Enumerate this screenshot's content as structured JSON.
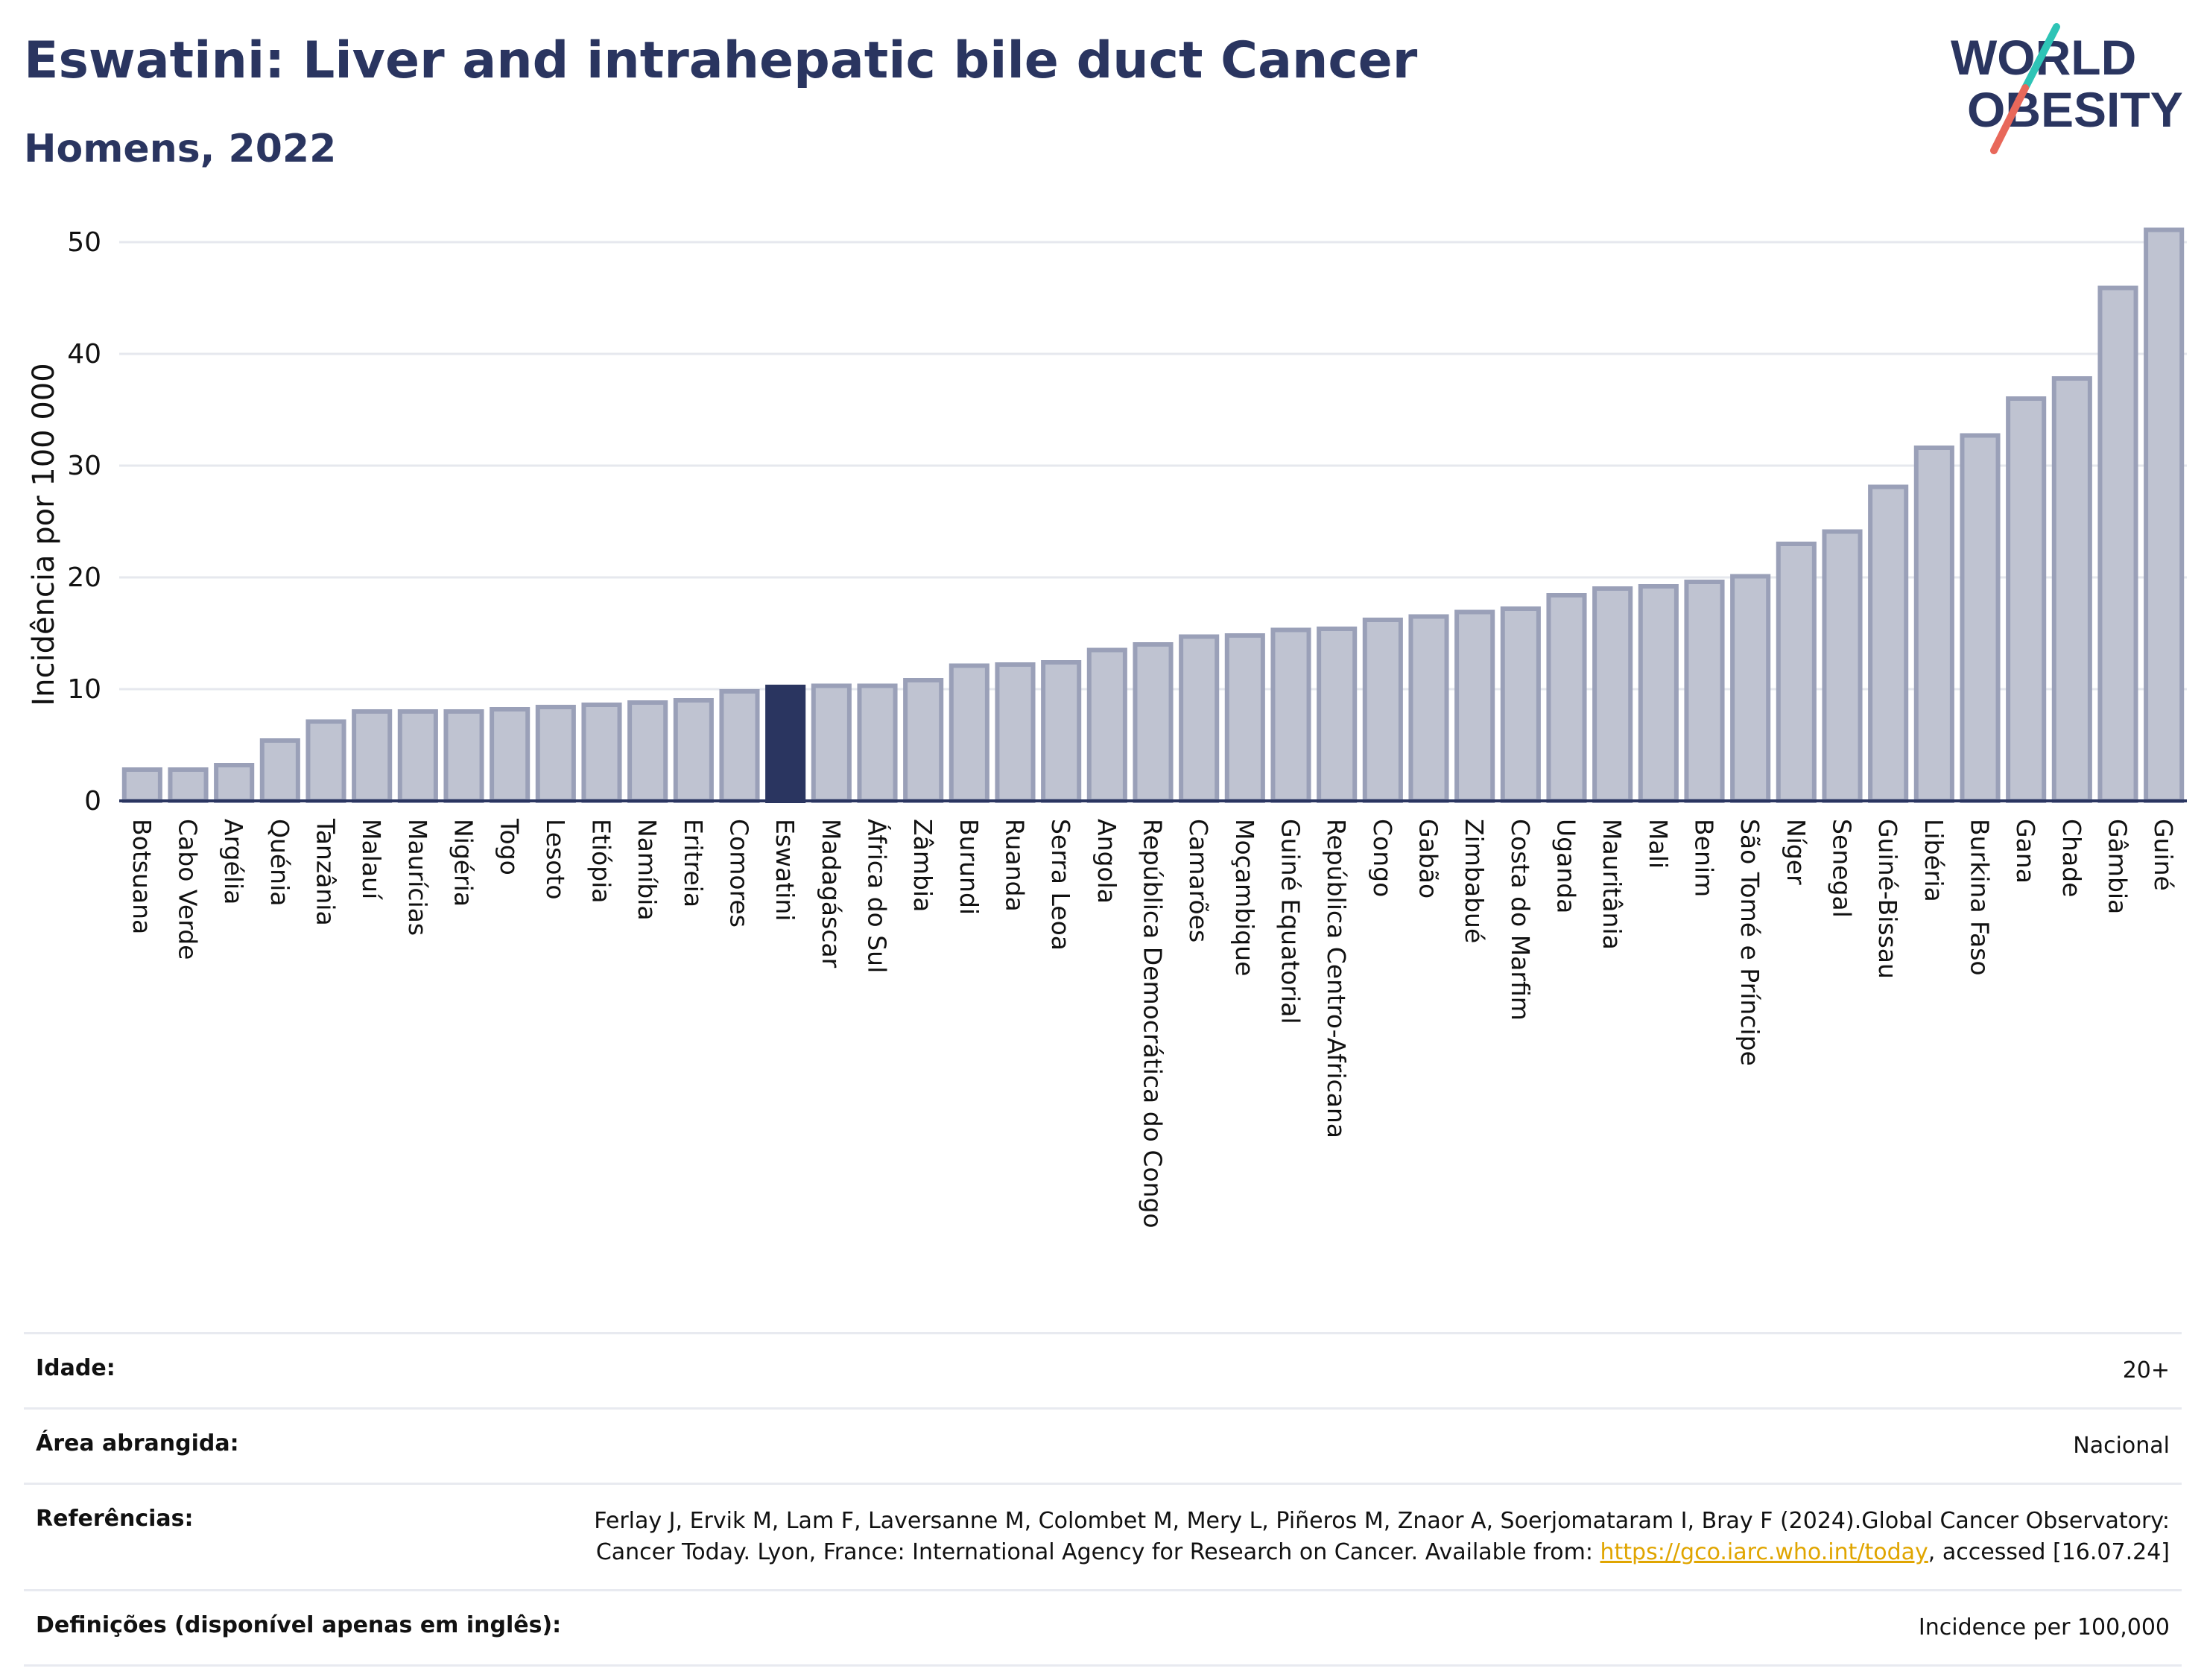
{
  "header": {
    "title": "Eswatini: Liver and intrahepatic bile duct Cancer",
    "subtitle": "Homens, 2022"
  },
  "logo": {
    "line1": "WORLD",
    "line2": "OBESITY",
    "accent_teal": "#2ec4b6",
    "accent_red": "#e8685a"
  },
  "colors": {
    "bar": "#bfc3d1",
    "bar_stroke": "#9aa0b8",
    "highlight": "#2a3560",
    "grid": "#e6e8ee",
    "axis": "#2a3560"
  },
  "chart_data": {
    "type": "bar",
    "ylabel": "Incidência por 100 000",
    "ylim": [
      0,
      53
    ],
    "yticks": [
      0,
      10,
      20,
      30,
      40,
      50
    ],
    "highlight": "Eswatini",
    "categories": [
      "Botsuana",
      "Cabo Verde",
      "Argélia",
      "Quénia",
      "Tanzânia",
      "Malauí",
      "Maurícias",
      "Nigéria",
      "Togo",
      "Lesoto",
      "Etiópia",
      "Namíbia",
      "Eritreia",
      "Comores",
      "Eswatini",
      "Madagáscar",
      "África do Sul",
      "Zâmbia",
      "Burundi",
      "Ruanda",
      "Serra Leoa",
      "Angola",
      "República Democrática do Congo",
      "Camarões",
      "Moçambique",
      "Guiné Equatorial",
      "República Centro-Africana",
      "Congo",
      "Gabão",
      "Zimbabué",
      "Costa do Marfim",
      "Uganda",
      "Mauritânia",
      "Mali",
      "Benim",
      "São Tomé e Príncipe",
      "Níger",
      "Senegal",
      "Guiné-Bissau",
      "Libéria",
      "Burkina Faso",
      "Gana",
      "Chade",
      "Gâmbia",
      "Guiné"
    ],
    "values": [
      2.8,
      2.8,
      3.2,
      5.4,
      7.1,
      8.0,
      8.0,
      8.0,
      8.2,
      8.4,
      8.6,
      8.8,
      9.0,
      9.8,
      10.2,
      10.3,
      10.3,
      10.8,
      12.1,
      12.2,
      12.4,
      13.5,
      14.0,
      14.7,
      14.8,
      15.3,
      15.4,
      16.2,
      16.5,
      16.9,
      17.2,
      18.4,
      19.0,
      19.2,
      19.6,
      20.1,
      23.0,
      24.1,
      28.1,
      31.6,
      32.7,
      36.0,
      37.8,
      45.9,
      51.1
    ]
  },
  "info": {
    "rows": [
      {
        "label": "Idade:",
        "value": "20+"
      },
      {
        "label": "Área abrangida:",
        "value": "Nacional"
      },
      {
        "label": "Referências:",
        "value_pre": "Ferlay J, Ervik M, Lam F, Laversanne M, Colombet M, Mery L, Piñeros M, Znaor A, Soerjomataram I, Bray F (2024).Global Cancer Observatory: Cancer Today. Lyon, France: International Agency for Research on Cancer. Available from: ",
        "link": "https://gco.iarc.who.int/today",
        "value_post": ", accessed [16.07.24]"
      },
      {
        "label": "Definições (disponível apenas em inglês):",
        "value": "Incidence per 100,000"
      }
    ]
  }
}
